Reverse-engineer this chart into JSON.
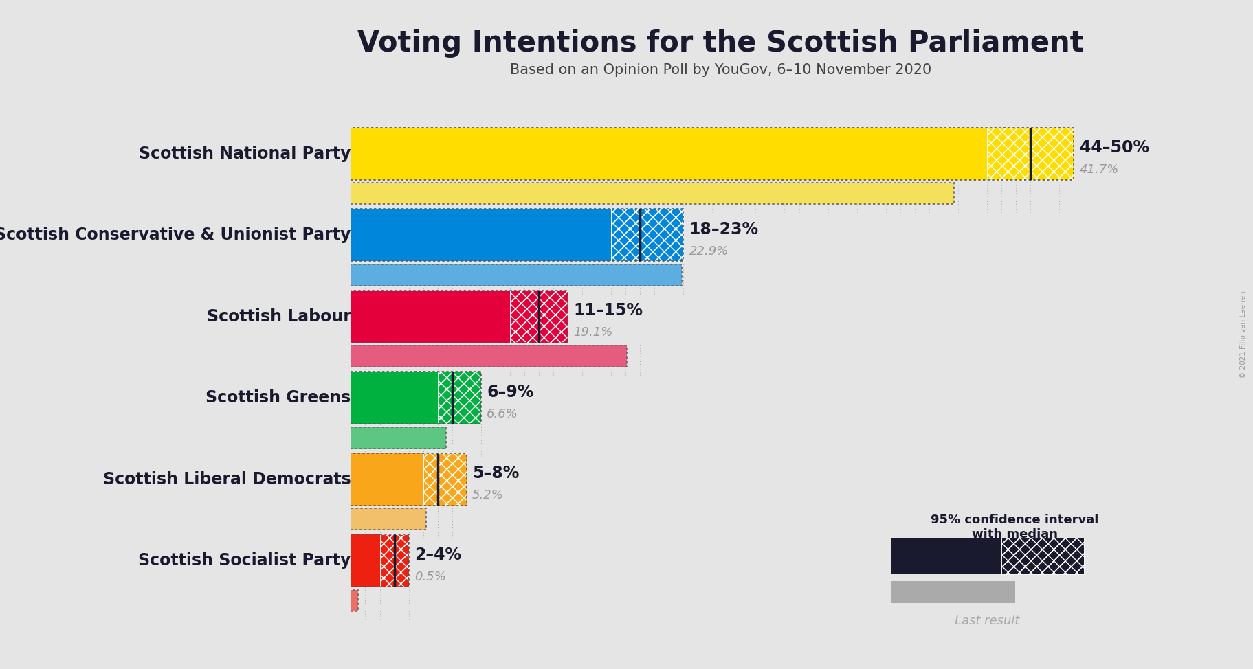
{
  "title": "Voting Intentions for the Scottish Parliament",
  "subtitle": "Based on an Opinion Poll by YouGov, 6–10 November 2020",
  "copyright": "© 2021 Filip van Laenen",
  "background_color": "#e5e5e5",
  "parties": [
    {
      "name": "Scottish National Party",
      "ci_low": 44,
      "ci_high": 50,
      "median": 47,
      "last_result": 41.7,
      "color": "#FFDD00",
      "color_alpha": "#FFDD00aa",
      "label": "44–50%",
      "last_label": "41.7%"
    },
    {
      "name": "Scottish Conservative & Unionist Party",
      "ci_low": 18,
      "ci_high": 23,
      "median": 20,
      "last_result": 22.9,
      "color": "#0087DC",
      "color_alpha": "#0087DCaa",
      "label": "18–23%",
      "last_label": "22.9%"
    },
    {
      "name": "Scottish Labour",
      "ci_low": 11,
      "ci_high": 15,
      "median": 13,
      "last_result": 19.1,
      "color": "#E4003B",
      "color_alpha": "#E4003Baa",
      "label": "11–15%",
      "last_label": "19.1%"
    },
    {
      "name": "Scottish Greens",
      "ci_low": 6,
      "ci_high": 9,
      "median": 7,
      "last_result": 6.6,
      "color": "#00B140",
      "color_alpha": "#00B140aa",
      "label": "6–9%",
      "last_label": "6.6%"
    },
    {
      "name": "Scottish Liberal Democrats",
      "ci_low": 5,
      "ci_high": 8,
      "median": 6,
      "last_result": 5.2,
      "color": "#FAA61A",
      "color_alpha": "#FAA61Aaa",
      "label": "5–8%",
      "last_label": "5.2%"
    },
    {
      "name": "Scottish Socialist Party",
      "ci_low": 2,
      "ci_high": 4,
      "median": 3,
      "last_result": 0.5,
      "color": "#EE2010",
      "color_alpha": "#EE2010aa",
      "label": "2–4%",
      "last_label": "0.5%"
    }
  ],
  "x_max": 52,
  "ci_label_fontsize": 17,
  "last_label_fontsize": 13,
  "party_fontsize": 17,
  "title_fontsize": 30,
  "subtitle_fontsize": 15
}
